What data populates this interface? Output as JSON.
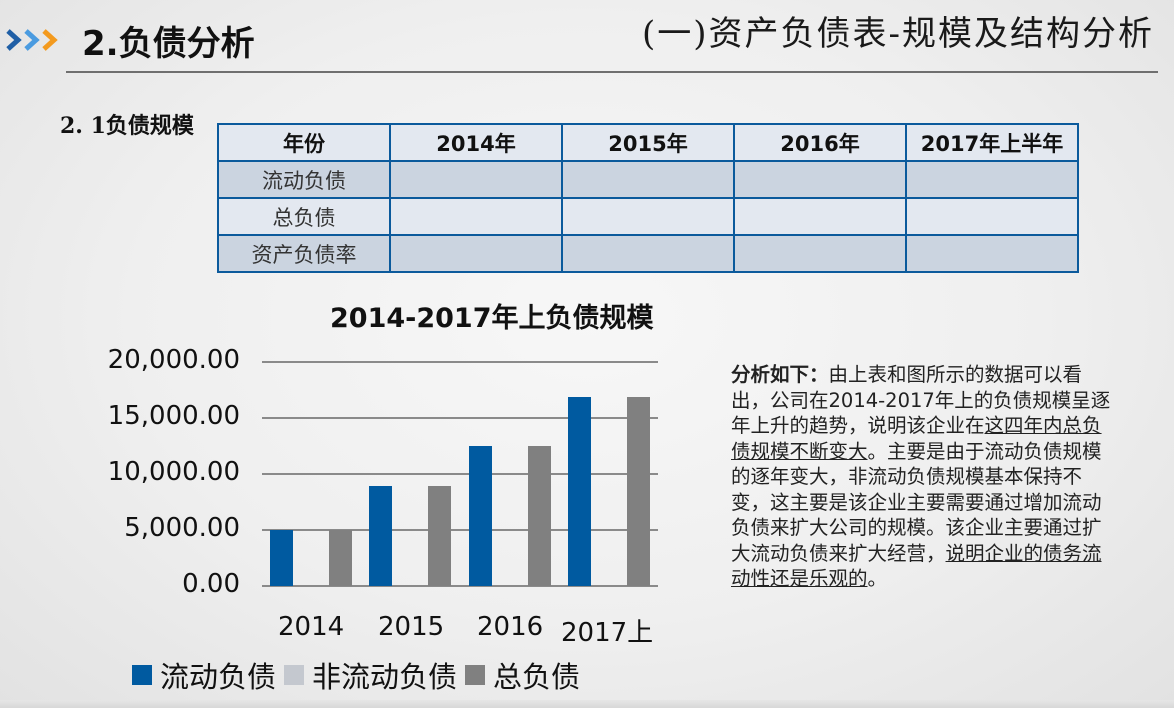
{
  "header": {
    "icon": "triple-chevron-right-icon",
    "icon_colors": [
      "#1f5fa6",
      "#4a9be0",
      "#f39a1e"
    ],
    "title": "2.负债分析",
    "subtitle": "(一)资产负债表-规模及结构分析"
  },
  "section": {
    "label": "2. 1负债规模"
  },
  "table": {
    "headers": [
      "年份",
      "2014年",
      "2015年",
      "2016年",
      "2017年上半年"
    ],
    "rows": [
      {
        "label": "流动负债",
        "cells": [
          "",
          "",
          "",
          ""
        ]
      },
      {
        "label": "总负债",
        "cells": [
          "",
          "",
          "",
          ""
        ]
      },
      {
        "label": "资产负债率",
        "cells": [
          "",
          "",
          "",
          ""
        ]
      }
    ]
  },
  "chart_data": {
    "type": "bar",
    "title": "2014-2017年上负债规模",
    "categories": [
      "2014",
      "2015",
      "2016",
      "2017上"
    ],
    "series": [
      {
        "name": "流动负债",
        "color": "#005aa0",
        "values": [
          5000,
          8900,
          12500,
          16900
        ]
      },
      {
        "name": "非流动负债",
        "color": "#c4c8cf",
        "values": [
          0,
          0,
          0,
          0
        ]
      },
      {
        "name": "总负债",
        "color": "#808080",
        "values": [
          5000,
          8900,
          12500,
          16900
        ]
      }
    ],
    "y_ticks": [
      "20,000.00",
      "15,000.00",
      "10,000.00",
      "5,000.00",
      "0.00"
    ],
    "ylim": [
      0,
      20000
    ],
    "xlabel": "",
    "ylabel": "",
    "grid": true,
    "legend_position": "bottom"
  },
  "analysis": {
    "lead": "分析如下：",
    "text_1": "由上表和图所示的数据可以看出，公司在2014-2017年上的负债规模呈逐年上升的趋势，说明该企业在",
    "underlined_1": "这四年内总负债规模不断变大",
    "text_2": "。主要是由于流动负债规模的逐年变大，非流动负债规模基本保持不变，这主要是该企业主要需要通过增加流动负债来扩大公司的规模。该企业主要通过扩大流动负债来扩大经营，",
    "underlined_2": "说明企业的债务流动性还是乐观的",
    "text_3": "。"
  }
}
